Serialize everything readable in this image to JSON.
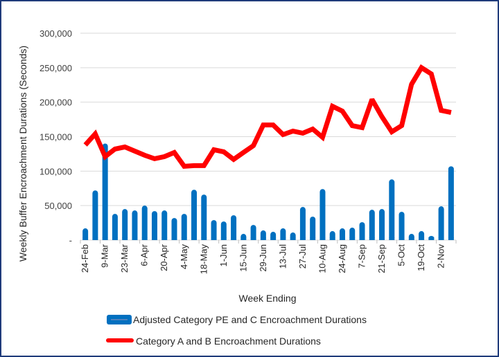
{
  "chart_data": {
    "type": "bar+line",
    "title": "",
    "xlabel": "Week Ending",
    "ylabel": "Weekly Buffer Encroachment Durations (Seconds)",
    "ylim": [
      0,
      300000
    ],
    "y_ticks": [
      0,
      50000,
      100000,
      150000,
      200000,
      250000,
      300000
    ],
    "y_tick_labels": [
      "-",
      "50,000",
      "100,000",
      "150,000",
      "200,000",
      "250,000",
      "300,000"
    ],
    "grid": true,
    "legend_position": "bottom",
    "categories": [
      "24-Feb",
      "3-Mar",
      "9-Mar",
      "16-Mar",
      "23-Mar",
      "30-Mar",
      "6-Apr",
      "13-Apr",
      "20-Apr",
      "27-Apr",
      "4-May",
      "11-May",
      "18-May",
      "25-May",
      "1-Jun",
      "8-Jun",
      "15-Jun",
      "22-Jun",
      "29-Jun",
      "6-Jul",
      "13-Jul",
      "20-Jul",
      "27-Jul",
      "3-Aug",
      "10-Aug",
      "17-Aug",
      "24-Aug",
      "31-Aug",
      "7-Sep",
      "14-Sep",
      "21-Sep",
      "28-Sep",
      "5-Oct",
      "12-Oct",
      "19-Oct",
      "26-Oct",
      "2-Nov",
      "9-Nov"
    ],
    "x_tick_labels": [
      "24-Feb",
      "9-Mar",
      "23-Mar",
      "6-Apr",
      "20-Apr",
      "4-May",
      "18-May",
      "1-Jun",
      "15-Jun",
      "29-Jun",
      "13-Jul",
      "27-Jul",
      "10-Aug",
      "24-Aug",
      "7-Sep",
      "21-Sep",
      "5-Oct",
      "19-Oct",
      "2-Nov"
    ],
    "series": [
      {
        "name": "Adjusted Category PE and C Encroachment Durations",
        "type": "bar",
        "color": "#0070c0",
        "values": [
          17000,
          72000,
          140000,
          38000,
          45000,
          43000,
          50000,
          42000,
          43000,
          32000,
          38000,
          73000,
          66000,
          29000,
          27000,
          36000,
          9000,
          22000,
          14000,
          12000,
          17000,
          11000,
          48000,
          34000,
          74000,
          13000,
          17000,
          18000,
          26000,
          44000,
          45000,
          88000,
          41000,
          9000,
          13000,
          6000,
          49000,
          107000
        ]
      },
      {
        "name": "Category A and B Encroachment Durations",
        "type": "line",
        "color": "#ff0000",
        "values": [
          138000,
          154000,
          121000,
          132000,
          135000,
          129000,
          123000,
          118000,
          121000,
          127000,
          107000,
          108000,
          108000,
          131000,
          128000,
          117000,
          127000,
          137000,
          167000,
          167000,
          153000,
          158000,
          155000,
          161000,
          149000,
          194000,
          187000,
          166000,
          163000,
          204000,
          179000,
          157000,
          166000,
          226000,
          250000,
          241000,
          188000,
          185000
        ]
      }
    ]
  },
  "frame_color": "#1f3a7a",
  "grid_color": "#d9d9d9"
}
